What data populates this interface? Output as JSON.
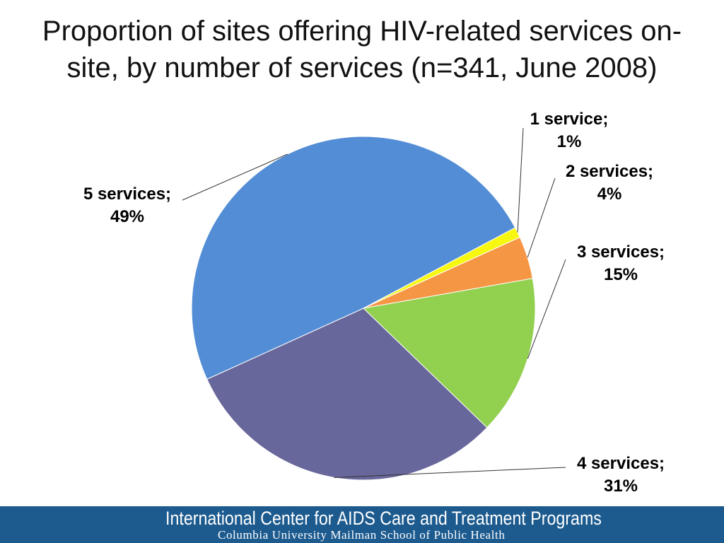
{
  "slide": {
    "title_line1": "Proportion of sites offering HIV-related services on-",
    "title_line2": "site, by number of services (n=341, June 2008)"
  },
  "footer": {
    "org_name": "International Center for AIDS Care and Treatment Programs",
    "school_name": "Columbia University Mailman School of Public Health",
    "bar_color": "#1d5b8f"
  },
  "chart_data": {
    "type": "pie",
    "title": "Proportion of sites offering HIV-related services on-site, by number of services (n=341, June 2008)",
    "slices": [
      {
        "category": "1 service",
        "value": 1,
        "label_line1": "1 service;",
        "label_line2": "1%",
        "color": "#f7f70f"
      },
      {
        "category": "2 services",
        "value": 4,
        "label_line1": "2 services;",
        "label_line2": "4%",
        "color": "#f59645"
      },
      {
        "category": "3 services",
        "value": 15,
        "label_line1": "3 services;",
        "label_line2": "15%",
        "color": "#92d050"
      },
      {
        "category": "4 services",
        "value": 31,
        "label_line1": "4 services;",
        "label_line2": "31%",
        "color": "#68679b"
      },
      {
        "category": "5 services",
        "value": 49,
        "label_line1": "5 services;",
        "label_line2": "49%",
        "color": "#538dd5"
      }
    ],
    "legend": "none",
    "data_labels": "outside-with-leader-lines"
  }
}
